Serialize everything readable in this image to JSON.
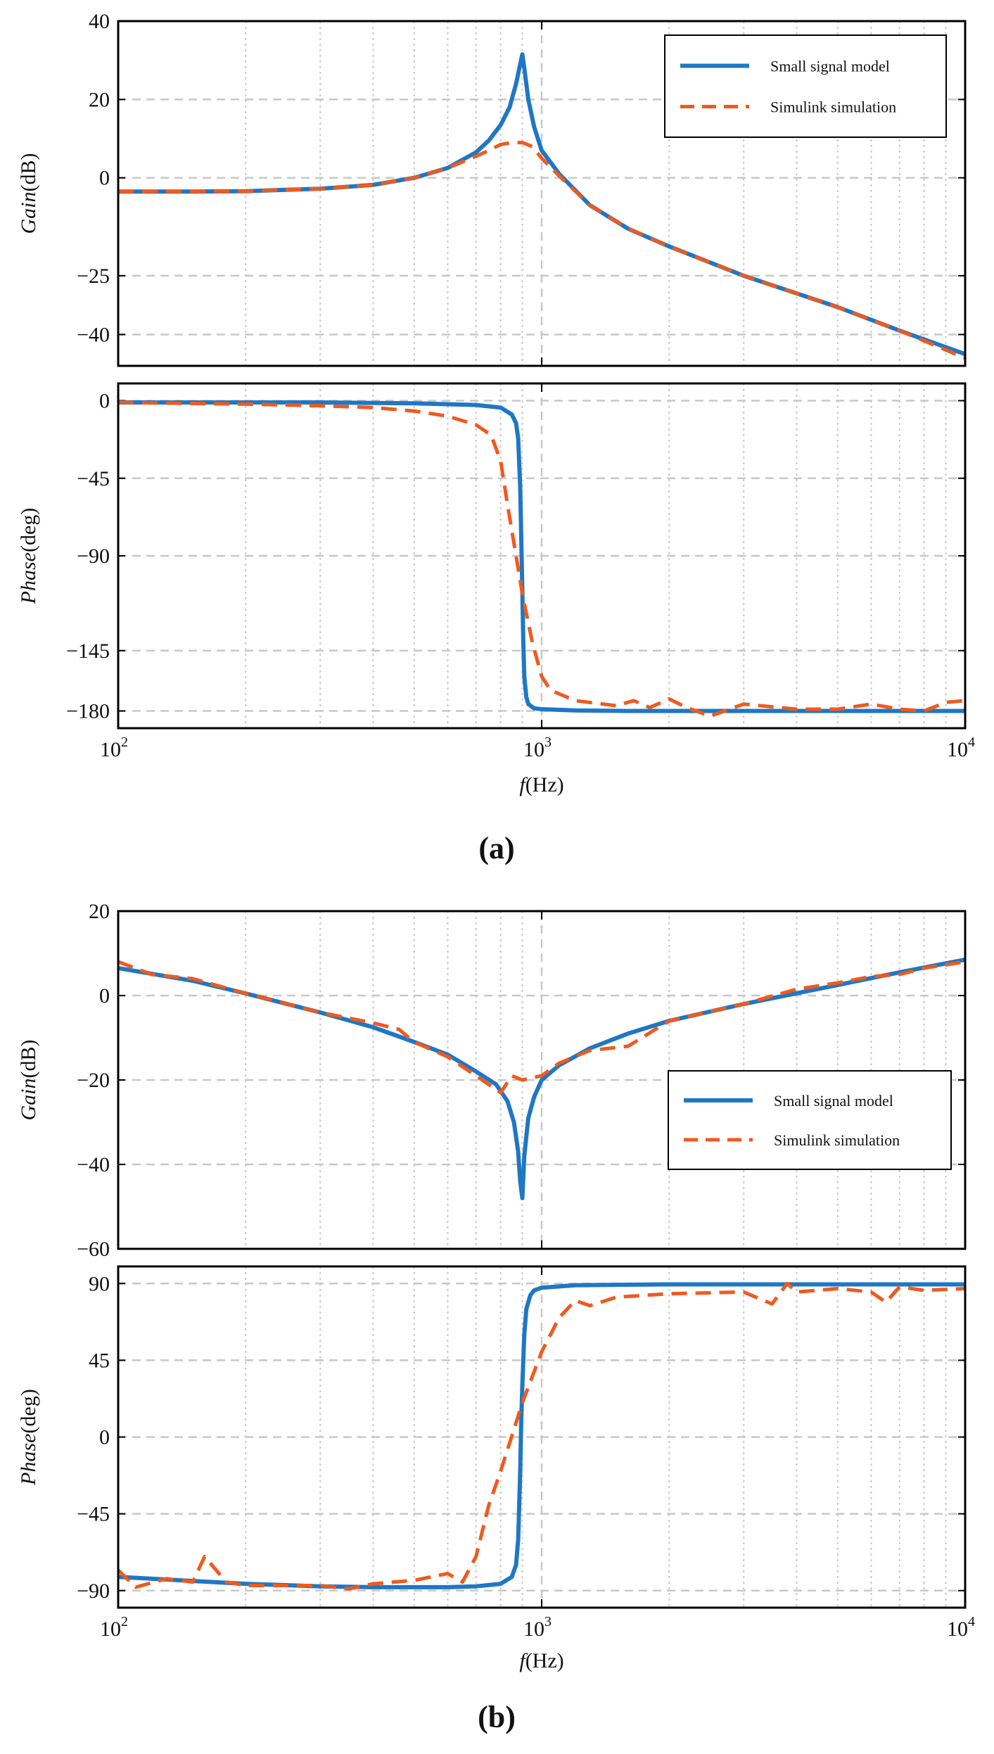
{
  "figure": {
    "panel_labels": [
      "(a)",
      "(b)"
    ]
  },
  "colors": {
    "small_signal": "#1f77c4",
    "simulink": "#ef5a1e",
    "axis": "#000000",
    "grid_major": "#c8c8c8",
    "grid_minor": "#c8c8c8"
  },
  "chart_data": [
    {
      "panel": "a",
      "type": "line",
      "x_scale": "log",
      "xlim": [
        100,
        10000
      ],
      "xlabel_italic": "f",
      "xlabel_rest": "(Hz)",
      "x_ticks": [
        {
          "base": "10",
          "exp": "2",
          "value": 100
        },
        {
          "base": "10",
          "exp": "3",
          "value": 1000
        },
        {
          "base": "10",
          "exp": "4",
          "value": 10000
        }
      ],
      "legend": {
        "position": "top-right",
        "entries": [
          "Small signal model",
          "Simulink simulation"
        ]
      },
      "subplots": [
        {
          "name": "gain",
          "ylabel_italic": "Gain",
          "ylabel_rest": "(dB)",
          "ylim": [
            -48,
            40
          ],
          "y_ticks": [
            40,
            20,
            0,
            -25,
            -40
          ],
          "y_tick_labels": [
            "40",
            "20",
            "0",
            "−25",
            "−40"
          ],
          "series": [
            {
              "name": "Small signal model",
              "style": "solid",
              "x": [
                100,
                150,
                200,
                300,
                400,
                500,
                600,
                700,
                750,
                800,
                840,
                870,
                890,
                900,
                910,
                930,
                960,
                1000,
                1100,
                1300,
                1600,
                2000,
                3000,
                5000,
                7000,
                10000
              ],
              "y": [
                -3.5,
                -3.5,
                -3.4,
                -2.8,
                -1.8,
                0,
                2.5,
                6.5,
                9.5,
                13.5,
                18,
                24,
                29,
                31.5,
                28,
                20,
                13,
                7,
                1,
                -7,
                -13,
                -17.5,
                -25,
                -33,
                -39,
                -45
              ]
            },
            {
              "name": "Simulink simulation",
              "style": "dashed",
              "x": [
                100,
                150,
                200,
                300,
                400,
                500,
                600,
                700,
                750,
                800,
                850,
                900,
                950,
                1000,
                1100,
                1300,
                1600,
                2000,
                3000,
                5000,
                7000,
                10000
              ],
              "y": [
                -3.5,
                -3.5,
                -3.4,
                -2.8,
                -1.8,
                0,
                2.5,
                5.5,
                7,
                8.5,
                9,
                9,
                8,
                5,
                0.5,
                -7,
                -13,
                -17.5,
                -25,
                -33,
                -39,
                -46
              ]
            }
          ]
        },
        {
          "name": "phase",
          "ylabel_italic": "Phase",
          "ylabel_rest": "(deg)",
          "ylim": [
            -190,
            10
          ],
          "y_ticks": [
            0,
            -45,
            -90,
            -145,
            -180
          ],
          "y_tick_labels": [
            "0",
            "−45",
            "−90",
            "−145",
            "−180"
          ],
          "series": [
            {
              "name": "Small signal model",
              "style": "solid",
              "x": [
                100,
                300,
                500,
                700,
                800,
                850,
                870,
                880,
                890,
                895,
                900,
                905,
                910,
                920,
                930,
                960,
                1000,
                1200,
                1600,
                3000,
                10000
              ],
              "y": [
                -1,
                -1,
                -1.5,
                -2.5,
                -4,
                -8,
                -13,
                -22,
                -50,
                -80,
                -110,
                -140,
                -160,
                -172,
                -176,
                -178.5,
                -179,
                -179.7,
                -180,
                -180,
                -180
              ]
            },
            {
              "name": "Simulink simulation",
              "style": "dashed",
              "x": [
                100,
                200,
                300,
                400,
                500,
                600,
                700,
                760,
                800,
                830,
                870,
                900,
                950,
                1000,
                1050,
                1200,
                1500,
                1650,
                1800,
                2000,
                2200,
                2500,
                3000,
                4000,
                5000,
                6000,
                7000,
                8000,
                9000,
                10000
              ],
              "y": [
                -1,
                -2,
                -3,
                -4,
                -6,
                -9,
                -14,
                -20,
                -35,
                -60,
                -90,
                -112,
                -140,
                -160,
                -168,
                -174,
                -177,
                -174,
                -178,
                -173,
                -178,
                -183,
                -176,
                -179,
                -179,
                -176,
                -179,
                -180,
                -175,
                -174
              ]
            }
          ]
        }
      ]
    },
    {
      "panel": "b",
      "type": "line",
      "x_scale": "log",
      "xlim": [
        100,
        10000
      ],
      "xlabel_italic": "f",
      "xlabel_rest": "(Hz)",
      "x_ticks": [
        {
          "base": "10",
          "exp": "2",
          "value": 100
        },
        {
          "base": "10",
          "exp": "3",
          "value": 1000
        },
        {
          "base": "10",
          "exp": "4",
          "value": 10000
        }
      ],
      "legend": {
        "position": "middle-right",
        "entries": [
          "Small signal model",
          "Simulink simulation"
        ]
      },
      "subplots": [
        {
          "name": "gain",
          "ylabel_italic": "Gain",
          "ylabel_rest": "(dB)",
          "ylim": [
            -60,
            20
          ],
          "y_ticks": [
            20,
            0,
            -20,
            -40,
            -60
          ],
          "y_tick_labels": [
            "20",
            "0",
            "−20",
            "−40",
            "−60"
          ],
          "series": [
            {
              "name": "Small signal model",
              "style": "solid",
              "x": [
                100,
                150,
                200,
                300,
                400,
                500,
                600,
                700,
                780,
                830,
                860,
                880,
                890,
                900,
                910,
                930,
                960,
                1000,
                1100,
                1300,
                1600,
                2000,
                3000,
                5000,
                7000,
                10000
              ],
              "y": [
                6.5,
                3.5,
                0.5,
                -4,
                -7.5,
                -11,
                -14,
                -18,
                -21,
                -25,
                -30,
                -37,
                -44,
                -48,
                -38,
                -29,
                -24,
                -20,
                -16.5,
                -12.5,
                -9,
                -6,
                -2,
                2.5,
                5.5,
                8.5
              ]
            },
            {
              "name": "Simulink simulation",
              "style": "dashed",
              "x": [
                100,
                120,
                150,
                200,
                300,
                400,
                460,
                500,
                600,
                700,
                800,
                850,
                900,
                1000,
                1100,
                1300,
                1600,
                2000,
                3000,
                4000,
                5000,
                6000,
                7000,
                8000,
                10000
              ],
              "y": [
                8,
                5,
                4,
                0.5,
                -4,
                -6.5,
                -8,
                -11,
                -14.5,
                -19,
                -23,
                -19,
                -20,
                -19,
                -16,
                -13,
                -12,
                -6,
                -2,
                1.5,
                3,
                4.5,
                5,
                6.5,
                8
              ]
            }
          ]
        },
        {
          "name": "phase",
          "ylabel_italic": "Phase",
          "ylabel_rest": "(deg)",
          "ylim": [
            -100,
            100
          ],
          "y_ticks": [
            90,
            45,
            0,
            -45,
            -90
          ],
          "y_tick_labels": [
            "90",
            "45",
            "0",
            "−45",
            "−90"
          ],
          "series": [
            {
              "name": "Small signal model",
              "style": "solid",
              "x": [
                100,
                200,
                300,
                400,
                500,
                600,
                700,
                800,
                850,
                870,
                880,
                890,
                895,
                900,
                910,
                920,
                940,
                960,
                1000,
                1200,
                2000,
                10000
              ],
              "y": [
                -82,
                -86,
                -87.5,
                -88,
                -88,
                -88,
                -87.5,
                -86,
                -82,
                -75,
                -60,
                -20,
                10,
                30,
                60,
                75,
                83,
                86,
                87.5,
                89,
                89.5,
                89.5
              ]
            },
            {
              "name": "Simulink simulation",
              "style": "dashed",
              "x": [
                100,
                110,
                130,
                150,
                160,
                180,
                200,
                300,
                350,
                400,
                500,
                600,
                650,
                700,
                750,
                800,
                900,
                1000,
                1100,
                1200,
                1300,
                1500,
                2000,
                3000,
                3500,
                3800,
                4000,
                5000,
                6000,
                6500,
                7000,
                8000,
                10000
              ],
              "y": [
                -78,
                -88,
                -83,
                -85,
                -70,
                -85,
                -87,
                -87,
                -89,
                -86,
                -84,
                -80,
                -85,
                -70,
                -40,
                -20,
                20,
                50,
                70,
                80,
                77,
                82,
                84,
                85,
                78,
                90,
                85,
                87,
                85,
                79,
                88,
                86,
                87
              ]
            }
          ]
        }
      ]
    }
  ]
}
